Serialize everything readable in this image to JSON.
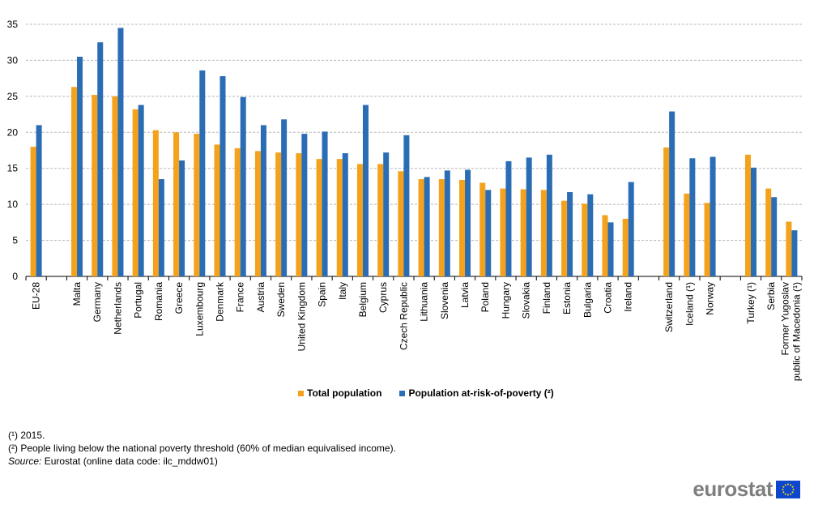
{
  "chart_data": {
    "type": "bar",
    "categories": [
      "EU-28",
      "Malta",
      "Germany",
      "Netherlands",
      "Portugal",
      "Romania",
      "Greece",
      "Luxembourg",
      "Denmark",
      "France",
      "Austria",
      "Sweden",
      "United Kingdom",
      "Spain",
      "Italy",
      "Belgium",
      "Cyprus",
      "Czech Republic",
      "Lithuania",
      "Slovenia",
      "Latvia",
      "Poland",
      "Hungary",
      "Slovakia",
      "Finland",
      "Estonia",
      "Bulgaria",
      "Croatia",
      "Ireland",
      "Switzerland",
      "Iceland (¹)",
      "Norway",
      "Turkey (¹)",
      "Serbia",
      "Former Yugoslav Republic of Macedonia (¹)"
    ],
    "groups_after": [
      0,
      28,
      31
    ],
    "series": [
      {
        "name": "Total population",
        "color": "#f4a21b",
        "values": [
          18.0,
          26.3,
          25.2,
          25.0,
          23.2,
          20.3,
          20.0,
          19.8,
          18.3,
          17.8,
          17.4,
          17.2,
          17.1,
          16.3,
          16.3,
          15.6,
          15.6,
          14.6,
          13.5,
          13.5,
          13.4,
          13.0,
          12.2,
          12.1,
          12.0,
          10.5,
          10.1,
          8.5,
          8.0,
          17.9,
          11.5,
          10.2,
          16.9,
          12.2,
          7.6
        ]
      },
      {
        "name": "Population at-risk-of-poverty (²)",
        "color": "#2a6db5",
        "values": [
          21.0,
          30.5,
          32.5,
          34.5,
          23.8,
          13.5,
          16.1,
          28.6,
          27.8,
          24.9,
          21.0,
          21.8,
          19.8,
          20.1,
          17.1,
          23.8,
          17.2,
          19.6,
          13.8,
          14.7,
          14.8,
          12.0,
          16.0,
          16.5,
          16.9,
          11.7,
          11.4,
          7.5,
          13.1,
          22.9,
          16.4,
          16.6,
          15.1,
          11.0,
          6.4
        ]
      }
    ],
    "ylim": [
      0,
      35
    ],
    "yticks": [
      0,
      5,
      10,
      15,
      20,
      25,
      30,
      35
    ],
    "grid": true,
    "legend": "bottom-center",
    "xlabel": "",
    "ylabel": ""
  },
  "notes": {
    "note1": "(¹) 2015.",
    "note2": "(²) People living below the national poverty threshold (60% of median equivalised income).",
    "source_label": "Source:",
    "source_text": " Eurostat (online data code: ilc_mddw01)"
  },
  "logo": {
    "text": "eurostat",
    "flag_color": "#0e47cb",
    "star_color": "#ffe100"
  }
}
